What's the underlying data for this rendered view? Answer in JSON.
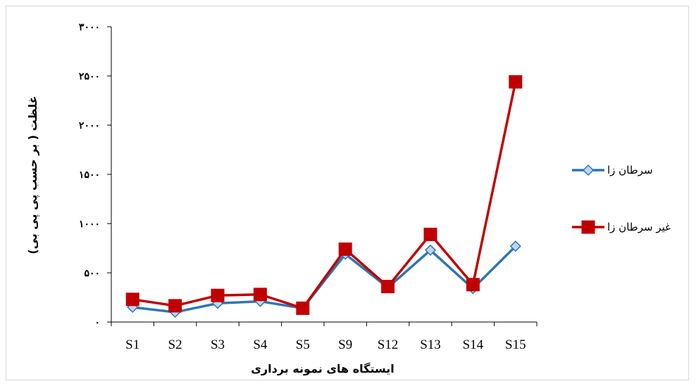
{
  "chart_data": {
    "type": "line",
    "categories": [
      "S1",
      "S2",
      "S3",
      "S4",
      "S5",
      "S9",
      "S12",
      "S13",
      "S14",
      "S15"
    ],
    "series": [
      {
        "name": "سرطان زا",
        "values": [
          150,
          100,
          190,
          210,
          140,
          690,
          350,
          730,
          340,
          770
        ],
        "color": "#2e75b6",
        "marker": "diamond"
      },
      {
        "name": "غیر سرطان زا",
        "values": [
          230,
          165,
          270,
          280,
          140,
          740,
          360,
          890,
          380,
          2440
        ],
        "color": "#c00000",
        "marker": "square"
      }
    ],
    "ylim": [
      0,
      3000
    ],
    "yticks": [
      "۰",
      "۵۰۰",
      "۱۰۰۰",
      "۱۵۰۰",
      "۲۰۰۰",
      "۲۵۰۰",
      "۳۰۰۰"
    ],
    "ytick_values": [
      0,
      500,
      1000,
      1500,
      2000,
      2500,
      3000
    ],
    "xlabel": "ایستگاه های نمونه برداری",
    "ylabel": "غلظت ( بر حسب پی پی بی)",
    "grid": false,
    "legend_position": "right"
  }
}
